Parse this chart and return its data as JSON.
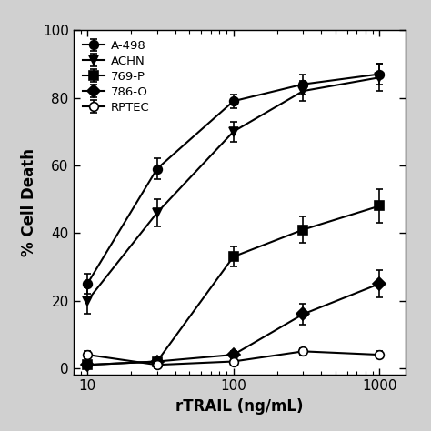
{
  "x": [
    10,
    30,
    100,
    300,
    1000
  ],
  "series": [
    {
      "name": "A-498",
      "y": [
        25,
        59,
        79,
        84,
        87
      ],
      "yerr": [
        3,
        3,
        2,
        3,
        3
      ],
      "marker": "o",
      "fillstyle": "full",
      "label": "A-498"
    },
    {
      "name": "ACHN",
      "y": [
        20,
        46,
        70,
        82,
        86
      ],
      "yerr": [
        4,
        4,
        3,
        3,
        4
      ],
      "marker": "v",
      "fillstyle": "full",
      "label": "ACHN"
    },
    {
      "name": "769-P",
      "y": [
        1,
        2,
        33,
        41,
        48
      ],
      "yerr": [
        1,
        1,
        3,
        4,
        5
      ],
      "marker": "s",
      "fillstyle": "full",
      "label": "769-P"
    },
    {
      "name": "786-O",
      "y": [
        1,
        2,
        4,
        16,
        25
      ],
      "yerr": [
        1,
        1,
        1,
        3,
        4
      ],
      "marker": "D",
      "fillstyle": "full",
      "label": "786-O"
    },
    {
      "name": "RPTEC",
      "y": [
        4,
        1,
        2,
        5,
        4
      ],
      "yerr": [
        1,
        1,
        1,
        1,
        1
      ],
      "marker": "o",
      "fillstyle": "none",
      "label": "RPTEC"
    }
  ],
  "xlabel": "rTRAIL (ng/mL)",
  "ylabel": "% Cell Death",
  "xlim": [
    8,
    1500
  ],
  "ylim": [
    -2,
    100
  ],
  "yticks": [
    0,
    20,
    40,
    60,
    80,
    100
  ],
  "xticks": [
    10,
    100,
    1000
  ],
  "xticklabels": [
    "10",
    "100",
    "1000"
  ],
  "color": "black",
  "linewidth": 1.5,
  "markersize": 7,
  "capsize": 3,
  "legend_loc": "upper left",
  "figure_facecolor": "#d0d0d0",
  "axes_facecolor": "#ffffff"
}
